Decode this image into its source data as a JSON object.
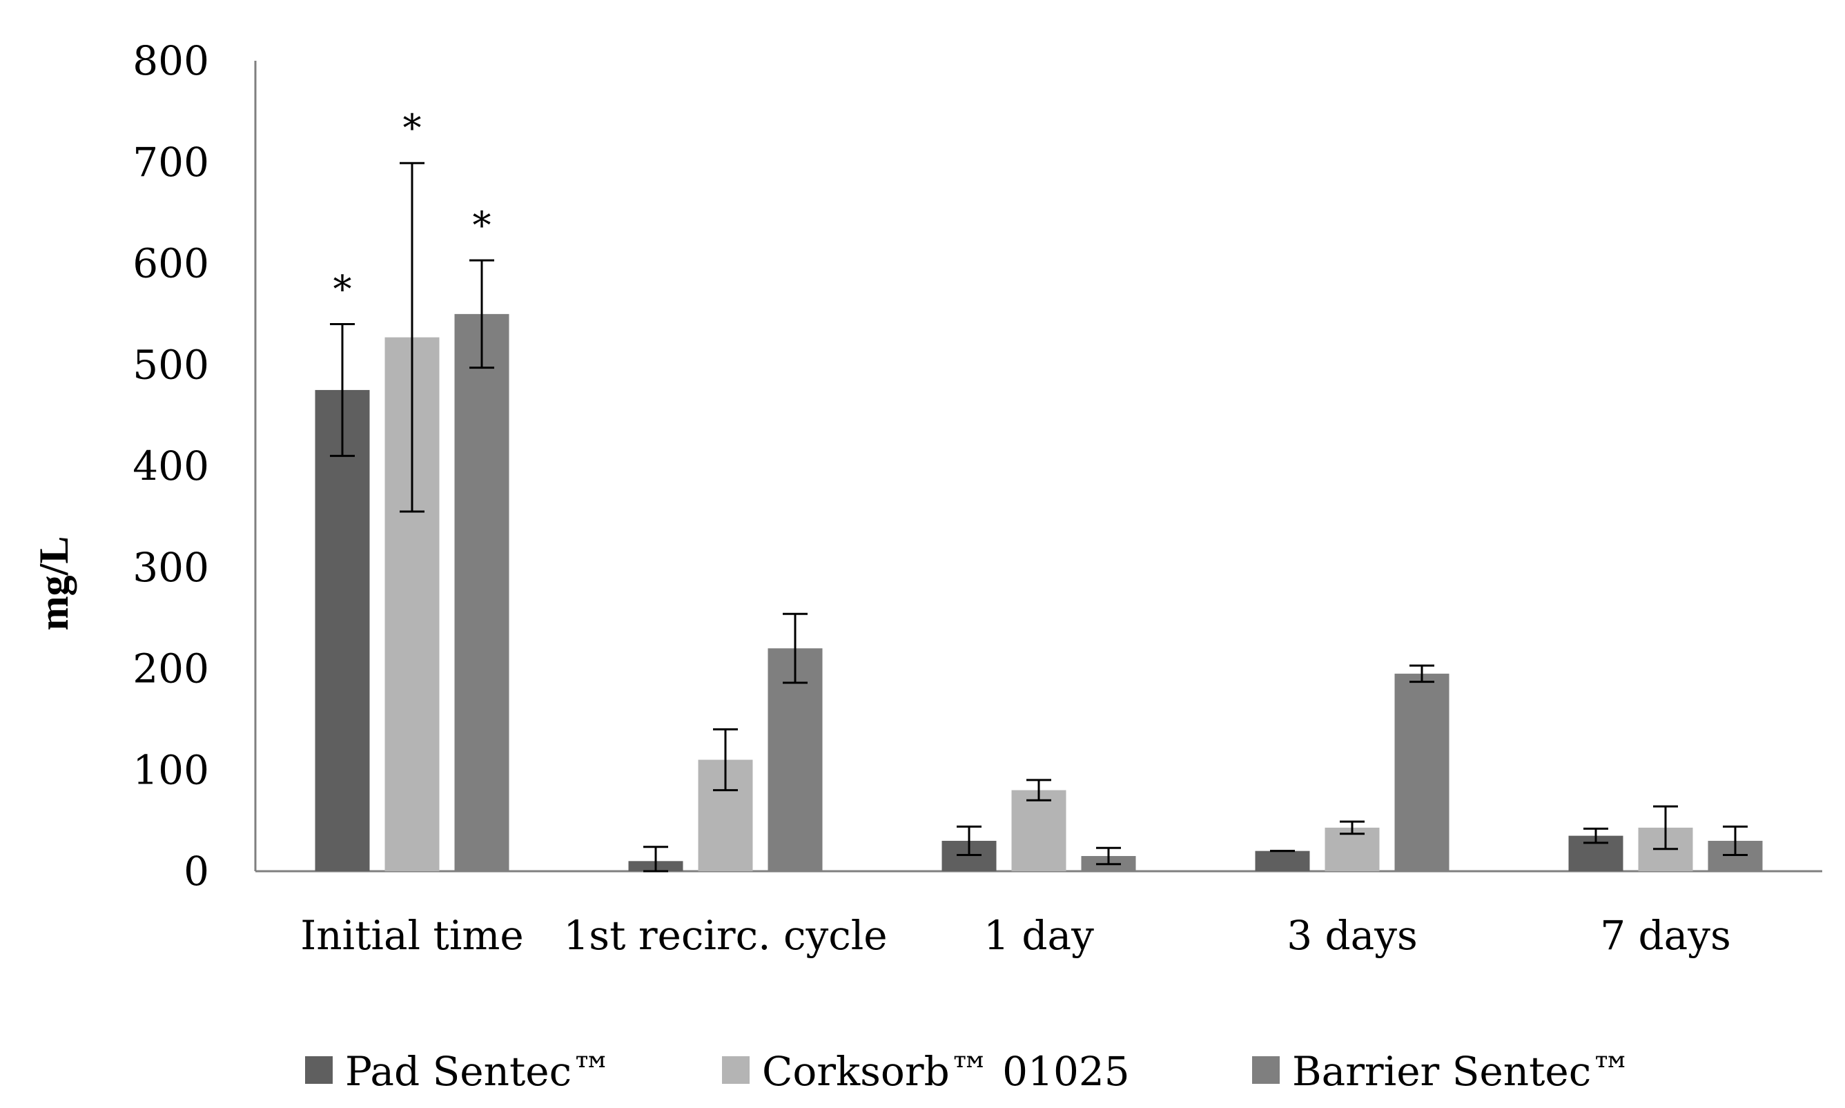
{
  "chart_data": {
    "type": "bar",
    "title": "",
    "xlabel": "",
    "ylabel": "mg/L",
    "ylim": [
      0,
      800
    ],
    "yticks": [
      0,
      100,
      200,
      300,
      400,
      500,
      600,
      700,
      800
    ],
    "grid": false,
    "legend_position": "bottom",
    "categories": [
      "Initial time",
      "1st recirc. cycle",
      "1 day",
      "3 days",
      "7 days"
    ],
    "series": [
      {
        "name": "Pad Sentec™",
        "color": "#5f5f5f",
        "values": [
          475,
          10,
          30,
          20,
          35
        ],
        "error": [
          65,
          14,
          14,
          0,
          7
        ],
        "significant": [
          true,
          false,
          false,
          false,
          false
        ]
      },
      {
        "name": "Corksorb™ 01025",
        "color": "#b4b4b4",
        "values": [
          527,
          110,
          80,
          43,
          43
        ],
        "error": [
          172,
          30,
          10,
          6,
          21
        ],
        "significant": [
          true,
          false,
          false,
          false,
          false
        ]
      },
      {
        "name": "Barrier Sentec™",
        "color": "#7f7f7f",
        "values": [
          550,
          220,
          15,
          195,
          30
        ],
        "error": [
          53,
          34,
          8,
          8,
          14
        ],
        "significant": [
          true,
          false,
          false,
          false,
          false
        ]
      }
    ],
    "annotation_symbol": "*"
  }
}
